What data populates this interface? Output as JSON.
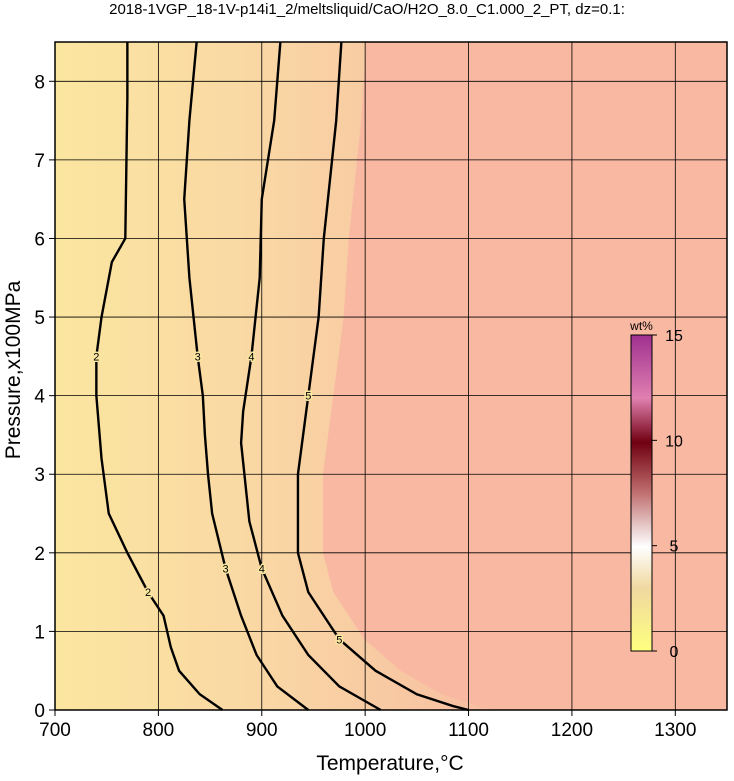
{
  "chart_data": {
    "type": "contour",
    "title": "2018-1VGP_18-1V-p14i1_2/meltsliquid/CaO/H2O_8.0_C1.000_2_PT, dz=0.1:",
    "x_label": "Temperature,°C",
    "y_label": "Pressure,x100MPa",
    "xlim": [
      700,
      1350
    ],
    "ylim": [
      0,
      8.5
    ],
    "xticks": [
      700,
      800,
      900,
      1000,
      1100,
      1200,
      1300
    ],
    "yticks": [
      0,
      1,
      2,
      3,
      4,
      5,
      6,
      7,
      8
    ],
    "grid": true,
    "contours": [
      {
        "level": 2,
        "x": [
          770,
          770,
          768,
          755,
          745,
          740,
          740,
          745,
          752,
          770,
          790,
          805,
          812,
          820,
          840,
          862
        ],
        "y": [
          8.5,
          7.8,
          6.0,
          5.7,
          5.0,
          4.5,
          4.0,
          3.2,
          2.5,
          2.0,
          1.5,
          1.2,
          0.8,
          0.5,
          0.2,
          0
        ]
      },
      {
        "level": 3,
        "x": [
          837,
          830,
          825,
          830,
          838,
          843,
          845,
          848,
          852,
          865,
          880,
          895,
          915,
          945
        ],
        "y": [
          8.5,
          7.5,
          6.5,
          5.5,
          4.5,
          4.0,
          3.5,
          3.0,
          2.5,
          1.8,
          1.2,
          0.7,
          0.3,
          0
        ]
      },
      {
        "level": 4,
        "x": [
          918,
          912,
          900,
          898,
          890,
          882,
          880,
          888,
          900,
          920,
          945,
          975,
          1015
        ],
        "y": [
          8.5,
          7.5,
          6.5,
          5.5,
          4.5,
          3.8,
          3.4,
          2.4,
          1.8,
          1.2,
          0.7,
          0.3,
          0
        ]
      },
      {
        "level": 5,
        "x": [
          977,
          972,
          960,
          955,
          945,
          935,
          935,
          945,
          975,
          1010,
          1050,
          1085,
          1100
        ],
        "y": [
          8.5,
          7.5,
          6.0,
          5.0,
          4.0,
          3.0,
          2.0,
          1.5,
          0.9,
          0.5,
          0.2,
          0.05,
          0
        ]
      }
    ],
    "colorbar": {
      "label": "wt%",
      "lim": [
        0,
        15
      ],
      "ticks": [
        0,
        5,
        10,
        15
      ]
    }
  }
}
